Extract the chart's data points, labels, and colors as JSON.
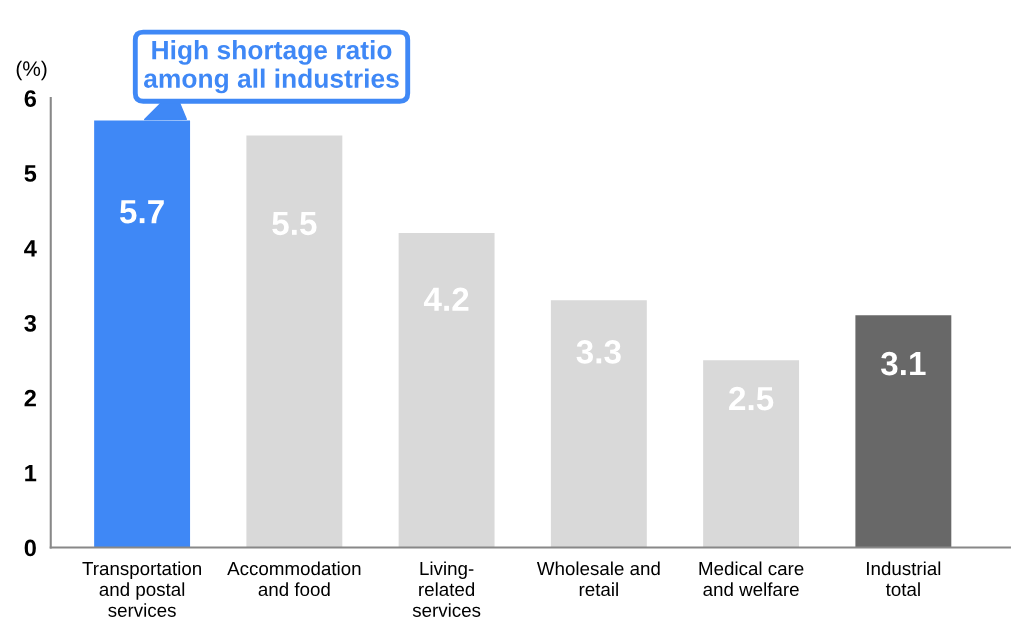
{
  "chart_data": {
    "type": "bar",
    "ylabel": "(%)",
    "categories": [
      "Transportation\nand postal\nservices",
      "Accommodation\nand food",
      "Living-\nrelated\nservices",
      "Wholesale and\nretail",
      "Medical care\nand welfare",
      "Industrial\ntotal"
    ],
    "values": [
      5.7,
      5.5,
      4.2,
      3.3,
      2.5,
      3.1
    ],
    "colors": [
      "#3f88f6",
      "#d9d9d9",
      "#d9d9d9",
      "#d9d9d9",
      "#d9d9d9",
      "#686868"
    ],
    "ylim": [
      0,
      6
    ],
    "yticks": [
      0,
      1,
      2,
      3,
      4,
      5,
      6
    ],
    "grid": false,
    "data_labels": true,
    "annotations": [
      {
        "text": "High shortage ratio\namong all industries",
        "x": "Transportation\nand postal\nservices",
        "y": 5.7
      }
    ]
  }
}
